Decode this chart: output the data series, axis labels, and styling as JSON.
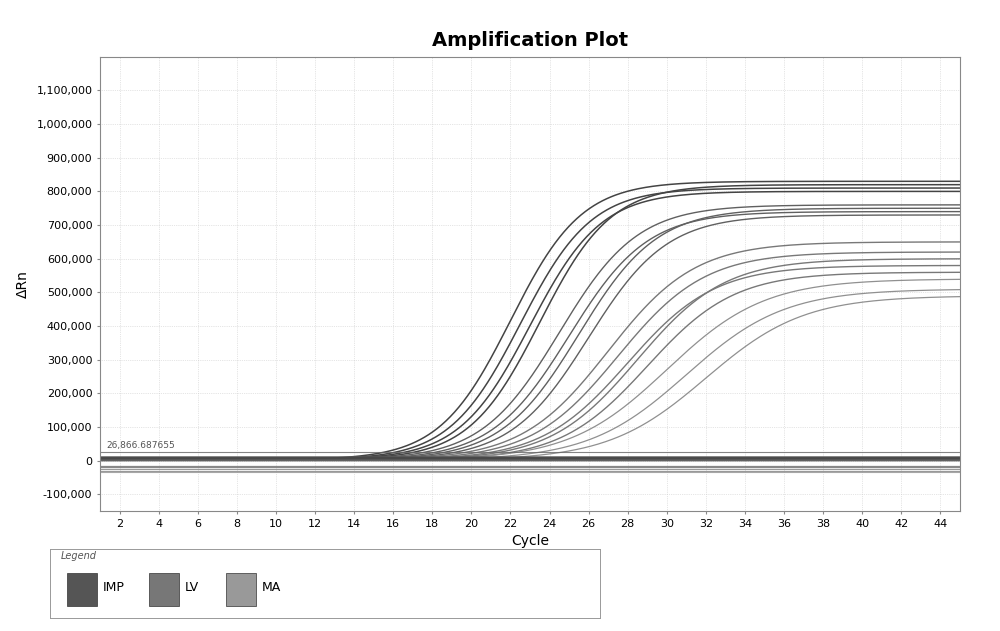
{
  "title": "Amplification Plot",
  "xlabel": "Cycle",
  "ylabel": "ΔRn",
  "xlim": [
    1,
    45
  ],
  "ylim": [
    -150000,
    1200000
  ],
  "yticks": [
    -100000,
    0,
    100000,
    200000,
    300000,
    400000,
    500000,
    600000,
    700000,
    800000,
    900000,
    1000000,
    1100000
  ],
  "ytick_labels": [
    "-100,000",
    "0",
    "100,000",
    "200,000",
    "300,000",
    "400,000",
    "500,000",
    "600,000",
    "700,000",
    "800,000",
    "900,000",
    "1,000,000",
    "1,100,000"
  ],
  "xticks": [
    2,
    4,
    6,
    8,
    10,
    12,
    14,
    16,
    18,
    20,
    22,
    24,
    26,
    28,
    30,
    32,
    34,
    36,
    38,
    40,
    42,
    44
  ],
  "threshold_y": 26866.687655,
  "threshold_label": "26,866.687655",
  "bg_color": "#ffffff",
  "grid_color": "#cccccc",
  "legend_items": [
    {
      "label": "IMP",
      "color": "#555555"
    },
    {
      "label": "LV",
      "color": "#777777"
    },
    {
      "label": "MA",
      "color": "#999999"
    }
  ],
  "curve_groups": [
    {
      "color": "#444444",
      "linewidth": 1.1,
      "midpoints": [
        22.0,
        22.5,
        23.0,
        23.5
      ],
      "plateaus": [
        830000,
        810000,
        800000,
        820000
      ],
      "baselines": [
        2000,
        1800,
        2200,
        1900
      ],
      "k": 0.55
    },
    {
      "color": "#606060",
      "linewidth": 1.0,
      "midpoints": [
        24.5,
        25.0,
        25.5,
        26.0
      ],
      "plateaus": [
        760000,
        740000,
        750000,
        730000
      ],
      "baselines": [
        1500,
        1600,
        1400,
        1700
      ],
      "k": 0.5
    },
    {
      "color": "#787878",
      "linewidth": 1.0,
      "midpoints": [
        27.0,
        27.5,
        28.0,
        28.5,
        29.0
      ],
      "plateaus": [
        650000,
        620000,
        580000,
        600000,
        560000
      ],
      "baselines": [
        1200,
        1000,
        1100,
        900,
        1300
      ],
      "k": 0.45
    },
    {
      "color": "#909090",
      "linewidth": 0.9,
      "midpoints": [
        30.0,
        31.0,
        32.0
      ],
      "plateaus": [
        540000,
        510000,
        490000
      ],
      "baselines": [
        800,
        900,
        700
      ],
      "k": 0.4
    }
  ],
  "flat_lines": [
    {
      "color": "#333333",
      "linewidth": 2.5,
      "y": 5000
    },
    {
      "color": "#444444",
      "linewidth": 2.0,
      "y": 8000
    },
    {
      "color": "#444444",
      "linewidth": 1.5,
      "y": 3000
    },
    {
      "color": "#555555",
      "linewidth": 1.5,
      "y": 6000
    },
    {
      "color": "#555555",
      "linewidth": 1.2,
      "y": 10000
    },
    {
      "color": "#444444",
      "linewidth": 1.8,
      "y": 7000
    },
    {
      "color": "#555555",
      "linewidth": 1.0,
      "y": 4000
    },
    {
      "color": "#666666",
      "linewidth": 1.0,
      "y": 2000
    },
    {
      "color": "#777777",
      "linewidth": 0.9,
      "y": -15000
    },
    {
      "color": "#777777",
      "linewidth": 0.9,
      "y": -20000
    },
    {
      "color": "#888888",
      "linewidth": 0.9,
      "y": -25000
    },
    {
      "color": "#888888",
      "linewidth": 0.8,
      "y": -30000
    },
    {
      "color": "#999999",
      "linewidth": 0.8,
      "y": -35000
    }
  ]
}
